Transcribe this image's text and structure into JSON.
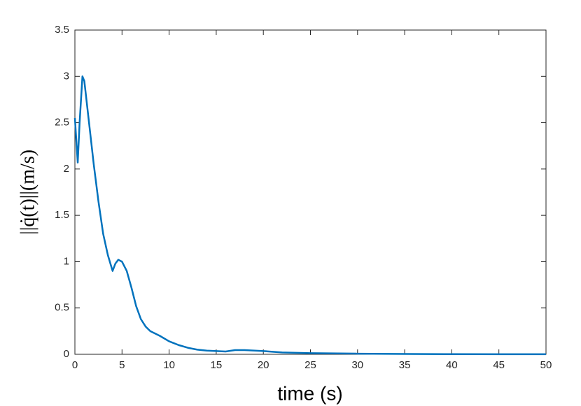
{
  "chart_data": {
    "type": "line",
    "x_label": "time (s)",
    "y_label": "||q̇(t)||(m/s)",
    "x": [
      0,
      0.3,
      0.5,
      0.8,
      1.0,
      1.5,
      2,
      2.5,
      3,
      3.5,
      4,
      4.3,
      4.6,
      5,
      5.5,
      6,
      6.5,
      7,
      7.5,
      8,
      9,
      10,
      11,
      12,
      13,
      14,
      15,
      16,
      17,
      18,
      20,
      22,
      25,
      30,
      35,
      40,
      45,
      50
    ],
    "values": [
      2.55,
      2.07,
      2.5,
      3.0,
      2.95,
      2.5,
      2.05,
      1.65,
      1.3,
      1.07,
      0.9,
      0.98,
      1.02,
      1.0,
      0.9,
      0.72,
      0.52,
      0.38,
      0.3,
      0.25,
      0.2,
      0.14,
      0.1,
      0.07,
      0.05,
      0.04,
      0.035,
      0.03,
      0.045,
      0.045,
      0.035,
      0.02,
      0.012,
      0.007,
      0.004,
      0.002,
      0.001,
      0.0005
    ],
    "color": "#0072bd",
    "xlim": [
      0,
      50
    ],
    "xticks": [
      0,
      5,
      10,
      15,
      20,
      25,
      30,
      35,
      40,
      45,
      50
    ],
    "ylim": [
      0,
      3.5
    ],
    "yticks": [
      0,
      0.5,
      1,
      1.5,
      2,
      2.5,
      3,
      3.5
    ],
    "grid": false
  }
}
